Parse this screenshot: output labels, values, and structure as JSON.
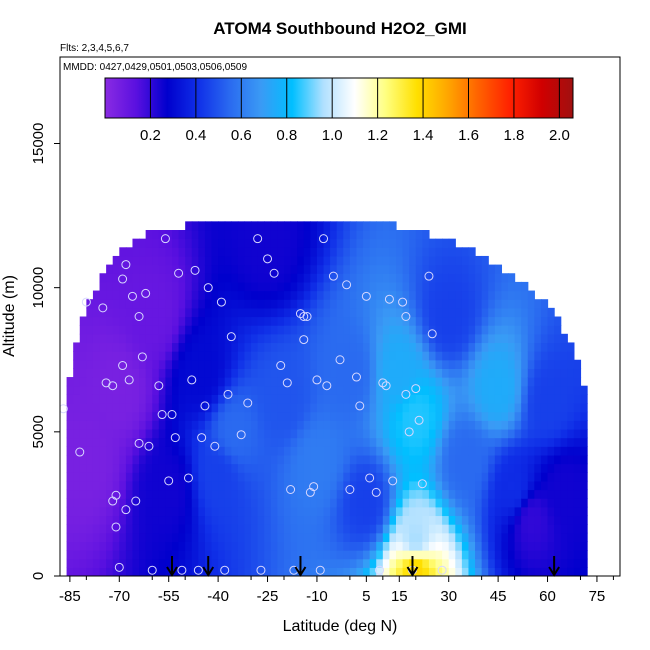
{
  "chart_data": {
    "type": "heatmap",
    "title": "ATOM4 Southbound H2O2_GMI",
    "flights_note": "Flts: 2,3,4,5,6,7",
    "dates_note": "MMDD: 0427,0429,0501,0503,0506,0509",
    "xlabel": "Latitude (deg N)",
    "ylabel": "Altitude (m)",
    "xlim": [
      -88,
      82
    ],
    "ylim": [
      0,
      18000
    ],
    "x_ticks": [
      -85,
      -70,
      -55,
      -40,
      -25,
      -10,
      5,
      15,
      30,
      45,
      60,
      75
    ],
    "y_ticks": [
      0,
      5000,
      10000,
      15000
    ],
    "colorbar": {
      "min": 0.0,
      "max": 2.06,
      "ticks": [
        "0.2",
        "0.4",
        "0.6",
        "0.8",
        "1.0",
        "1.2",
        "1.4",
        "1.6",
        "1.8",
        "2.0"
      ],
      "tick_values": [
        0.2,
        0.4,
        0.6,
        0.8,
        1.0,
        1.2,
        1.4,
        1.6,
        1.8,
        2.0
      ],
      "colors": [
        "#8a2be2",
        "#5a10e0",
        "#0000cd",
        "#1030e8",
        "#2a6af0",
        "#3a9af5",
        "#00bfff",
        "#b0e0ff",
        "#ffffff",
        "#ffff80",
        "#ffe000",
        "#ffa500",
        "#ff6000",
        "#ff2000",
        "#d00000",
        "#a01010"
      ]
    },
    "coverage": {
      "lat": [
        -86,
        -82,
        -78,
        -74,
        -70,
        -65,
        -60,
        -50,
        -40,
        -30,
        -20,
        -10,
        0,
        10,
        20,
        30,
        40,
        50,
        58,
        65,
        70,
        72
      ],
      "top_altitude": [
        6200,
        8500,
        9600,
        10600,
        11200,
        11500,
        11800,
        12000,
        12100,
        12200,
        12200,
        12200,
        12200,
        12100,
        11900,
        11500,
        11000,
        10200,
        9500,
        8400,
        7200,
        6000
      ]
    },
    "field_samples": [
      {
        "lat": -80,
        "alt": 4000,
        "value": 0.05
      },
      {
        "lat": -70,
        "alt": 6500,
        "value": 0.05
      },
      {
        "lat": -60,
        "alt": 9000,
        "value": 0.1
      },
      {
        "lat": -55,
        "alt": 3000,
        "value": 0.25
      },
      {
        "lat": -45,
        "alt": 7000,
        "value": 0.3
      },
      {
        "lat": -40,
        "alt": 3500,
        "value": 0.45
      },
      {
        "lat": -35,
        "alt": 5000,
        "value": 0.55
      },
      {
        "lat": -25,
        "alt": 11500,
        "value": 0.25
      },
      {
        "lat": -20,
        "alt": 6000,
        "value": 0.5
      },
      {
        "lat": -10,
        "alt": 4000,
        "value": 0.6
      },
      {
        "lat": 0,
        "alt": 7000,
        "value": 0.55
      },
      {
        "lat": 5,
        "alt": 2500,
        "value": 0.45
      },
      {
        "lat": 15,
        "alt": 7000,
        "value": 0.75
      },
      {
        "lat": 20,
        "alt": 5500,
        "value": 0.85
      },
      {
        "lat": 20,
        "alt": 1200,
        "value": 0.95
      },
      {
        "lat": 20,
        "alt": 300,
        "value": 1.4
      },
      {
        "lat": 30,
        "alt": 9000,
        "value": 0.45
      },
      {
        "lat": 35,
        "alt": 4000,
        "value": 0.55
      },
      {
        "lat": 45,
        "alt": 6500,
        "value": 0.75
      },
      {
        "lat": 50,
        "alt": 3000,
        "value": 0.4
      },
      {
        "lat": 55,
        "alt": 2000,
        "value": 0.2
      },
      {
        "lat": 60,
        "alt": 6000,
        "value": 0.45
      },
      {
        "lat": 65,
        "alt": 3000,
        "value": 0.25
      }
    ],
    "observations": [
      [
        -87,
        5800
      ],
      [
        -82,
        4300
      ],
      [
        -80,
        9500
      ],
      [
        -75,
        9300
      ],
      [
        -74,
        6700
      ],
      [
        -72,
        6600
      ],
      [
        -72,
        2600
      ],
      [
        -71,
        2800
      ],
      [
        -71,
        1700
      ],
      [
        -70,
        300
      ],
      [
        -69,
        10300
      ],
      [
        -69,
        7300
      ],
      [
        -68,
        10800
      ],
      [
        -68,
        2300
      ],
      [
        -67,
        6800
      ],
      [
        -66,
        9700
      ],
      [
        -65,
        2600
      ],
      [
        -64,
        9000
      ],
      [
        -64,
        4600
      ],
      [
        -63,
        7600
      ],
      [
        -62,
        9800
      ],
      [
        -61,
        4500
      ],
      [
        -60,
        200
      ],
      [
        -58,
        6600
      ],
      [
        -57,
        5600
      ],
      [
        -56,
        11700
      ],
      [
        -55,
        3300
      ],
      [
        -54,
        5600
      ],
      [
        -53,
        4800
      ],
      [
        -52,
        10500
      ],
      [
        -51,
        200
      ],
      [
        -49,
        3400
      ],
      [
        -48,
        6800
      ],
      [
        -47,
        10600
      ],
      [
        -46,
        200
      ],
      [
        -45,
        4800
      ],
      [
        -44,
        5900
      ],
      [
        -43,
        10000
      ],
      [
        -41,
        4500
      ],
      [
        -39,
        9500
      ],
      [
        -38,
        200
      ],
      [
        -37,
        6300
      ],
      [
        -36,
        8300
      ],
      [
        -33,
        4900
      ],
      [
        -31,
        6000
      ],
      [
        -28,
        11700
      ],
      [
        -27,
        200
      ],
      [
        -25,
        11000
      ],
      [
        -23,
        10500
      ],
      [
        -21,
        7300
      ],
      [
        -19,
        6700
      ],
      [
        -18,
        3000
      ],
      [
        -17,
        200
      ],
      [
        -15,
        9100
      ],
      [
        -14,
        9000
      ],
      [
        -14,
        8200
      ],
      [
        -13,
        9000
      ],
      [
        -12,
        2900
      ],
      [
        -11,
        3100
      ],
      [
        -10,
        6800
      ],
      [
        -9,
        200
      ],
      [
        -8,
        11700
      ],
      [
        -7,
        6600
      ],
      [
        -5,
        10400
      ],
      [
        -3,
        7500
      ],
      [
        -1,
        10100
      ],
      [
        0,
        3000
      ],
      [
        2,
        6900
      ],
      [
        3,
        5900
      ],
      [
        5,
        9700
      ],
      [
        6,
        3400
      ],
      [
        8,
        2900
      ],
      [
        9,
        200
      ],
      [
        10,
        6700
      ],
      [
        11,
        6600
      ],
      [
        12,
        9600
      ],
      [
        13,
        3300
      ],
      [
        16,
        9500
      ],
      [
        17,
        9000
      ],
      [
        17,
        6300
      ],
      [
        18,
        5000
      ],
      [
        19,
        200
      ],
      [
        20,
        6500
      ],
      [
        21,
        5400
      ],
      [
        22,
        3200
      ],
      [
        24,
        10400
      ],
      [
        25,
        8400
      ],
      [
        28,
        200
      ]
    ],
    "arrow_markers_lat": [
      -54,
      -43,
      -15,
      19,
      62
    ]
  }
}
